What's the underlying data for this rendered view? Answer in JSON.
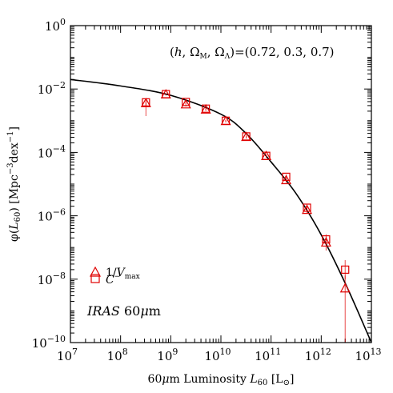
{
  "chart_data": {
    "type": "scatter",
    "xlabel": {
      "pre": "60",
      "mu": "μ",
      "mid": "m Luminosity ",
      "var": "L",
      "sub": "60",
      "post": " [L",
      "sun": "⊙",
      "end": "]"
    },
    "ylabel": {
      "pre": "φ(",
      "var": "L",
      "sub": "60",
      "mid": ") [Mpc",
      "sup1": "−3",
      "mid2": "dex",
      "sup2": "−1",
      "end": "]"
    },
    "x_scale": "log",
    "y_scale": "log",
    "xlim": [
      10000000.0,
      10000000000000.0
    ],
    "ylim": [
      1e-10,
      1
    ],
    "x_ticks": [
      {
        "base": "10",
        "exp": "7",
        "value": 10000000.0
      },
      {
        "base": "10",
        "exp": "8",
        "value": 100000000.0
      },
      {
        "base": "10",
        "exp": "9",
        "value": 1000000000.0
      },
      {
        "base": "10",
        "exp": "10",
        "value": 10000000000.0
      },
      {
        "base": "10",
        "exp": "11",
        "value": 100000000000.0
      },
      {
        "base": "10",
        "exp": "12",
        "value": 1000000000000.0
      },
      {
        "base": "10",
        "exp": "13",
        "value": 10000000000000.0
      }
    ],
    "y_ticks": [
      {
        "base": "10",
        "exp": "0",
        "value": 1
      },
      {
        "base": "10",
        "exp": "−2",
        "value": 0.01
      },
      {
        "base": "10",
        "exp": "−4",
        "value": 0.0001
      },
      {
        "base": "10",
        "exp": "−6",
        "value": 1e-06
      },
      {
        "base": "10",
        "exp": "−8",
        "value": 1e-08
      },
      {
        "base": "10",
        "exp": "−10",
        "value": 1e-10
      }
    ],
    "annotation_cosmology": {
      "open": "(",
      "h": "h",
      "sep1": ", ",
      "om": "Ω",
      "om_sub": "M",
      "sep2": ", ",
      "ol": "Ω",
      "ol_sub": "Λ",
      "close": ")=(0.72, 0.3, 0.7)"
    },
    "annotation_band": {
      "survey": "IRAS",
      "band": " 60",
      "mu": "μ",
      "unit": "m"
    },
    "series": [
      {
        "name": "1/V_max",
        "label": {
          "one": "1/",
          "var": "V",
          "sub": "max"
        },
        "marker": "triangle",
        "color": "#e00000",
        "points": [
          {
            "x": 320000000.0,
            "y": 0.0035,
            "ylo": 0.003,
            "yhi": 0.0041
          },
          {
            "x": 800000000.0,
            "y": 0.0066,
            "ylo": 0.0062,
            "yhi": 0.007
          },
          {
            "x": 2000000000.0,
            "y": 0.0032,
            "ylo": 0.0028,
            "yhi": 0.0036
          },
          {
            "x": 5000000000.0,
            "y": 0.0022,
            "ylo": 0.002,
            "yhi": 0.0025
          },
          {
            "x": 12500000000.0,
            "y": 0.00095,
            "ylo": 0.00087,
            "yhi": 0.00105
          },
          {
            "x": 32000000000.0,
            "y": 0.0003,
            "ylo": 0.00027,
            "yhi": 0.00033
          },
          {
            "x": 80000000000.0,
            "y": 7.5e-05,
            "ylo": 6.7e-05,
            "yhi": 8.4e-05
          },
          {
            "x": 200000000000.0,
            "y": 1.3e-05,
            "ylo": 1.1e-05,
            "yhi": 1.55e-05
          },
          {
            "x": 520000000000.0,
            "y": 1.5e-06,
            "ylo": 1.2e-06,
            "yhi": 1.9e-06
          },
          {
            "x": 1250000000000.0,
            "y": 1.4e-07,
            "ylo": 8e-08,
            "yhi": 2.2e-07
          },
          {
            "x": 3000000000000.0,
            "y": 5e-09,
            "ylo": 1e-10,
            "yhi": 1.3e-08
          }
        ]
      },
      {
        "name": "C^-",
        "label": {
          "var": "C",
          "sup": "−"
        },
        "marker": "square",
        "color": "#e00000",
        "points": [
          {
            "x": 320000000.0,
            "y": 0.0038,
            "ylo": 0.0014,
            "yhi": 0.0046
          },
          {
            "x": 800000000.0,
            "y": 0.0069,
            "ylo": 0.0064,
            "yhi": 0.0074
          },
          {
            "x": 2000000000.0,
            "y": 0.0039,
            "ylo": 0.0034,
            "yhi": 0.0044
          },
          {
            "x": 5000000000.0,
            "y": 0.0024,
            "ylo": 0.0022,
            "yhi": 0.0027
          },
          {
            "x": 12500000000.0,
            "y": 0.001,
            "ylo": 0.00093,
            "yhi": 0.00108
          },
          {
            "x": 32000000000.0,
            "y": 0.00032,
            "ylo": 0.00029,
            "yhi": 0.00035
          },
          {
            "x": 80000000000.0,
            "y": 7.8e-05,
            "ylo": 7e-05,
            "yhi": 8.7e-05
          },
          {
            "x": 200000000000.0,
            "y": 1.7e-05,
            "ylo": 1.45e-05,
            "yhi": 2e-05
          },
          {
            "x": 520000000000.0,
            "y": 1.8e-06,
            "ylo": 1.5e-06,
            "yhi": 2.3e-06
          },
          {
            "x": 1250000000000.0,
            "y": 1.8e-07,
            "ylo": 1.3e-07,
            "yhi": 2.6e-07
          },
          {
            "x": 3000000000000.0,
            "y": 2e-08,
            "ylo": 1e-08,
            "yhi": 4e-08
          }
        ]
      },
      {
        "name": "fit",
        "line": true,
        "color": "#000000",
        "points": [
          {
            "x": 10000000.0,
            "y": 0.02
          },
          {
            "x": 100000000.0,
            "y": 0.0125
          },
          {
            "x": 1000000000.0,
            "y": 0.0063
          },
          {
            "x": 10000000000.0,
            "y": 0.0016
          },
          {
            "x": 31600000000.0,
            "y": 0.0004
          },
          {
            "x": 100000000000.0,
            "y": 5e-05
          },
          {
            "x": 316000000000.0,
            "y": 5e-06
          },
          {
            "x": 1000000000000.0,
            "y": 2.5e-07
          },
          {
            "x": 3160000000000.0,
            "y": 6.3e-09
          },
          {
            "x": 10000000000000.0,
            "y": 1e-10
          }
        ]
      }
    ],
    "grid": false,
    "legend_position": "lower-left"
  }
}
